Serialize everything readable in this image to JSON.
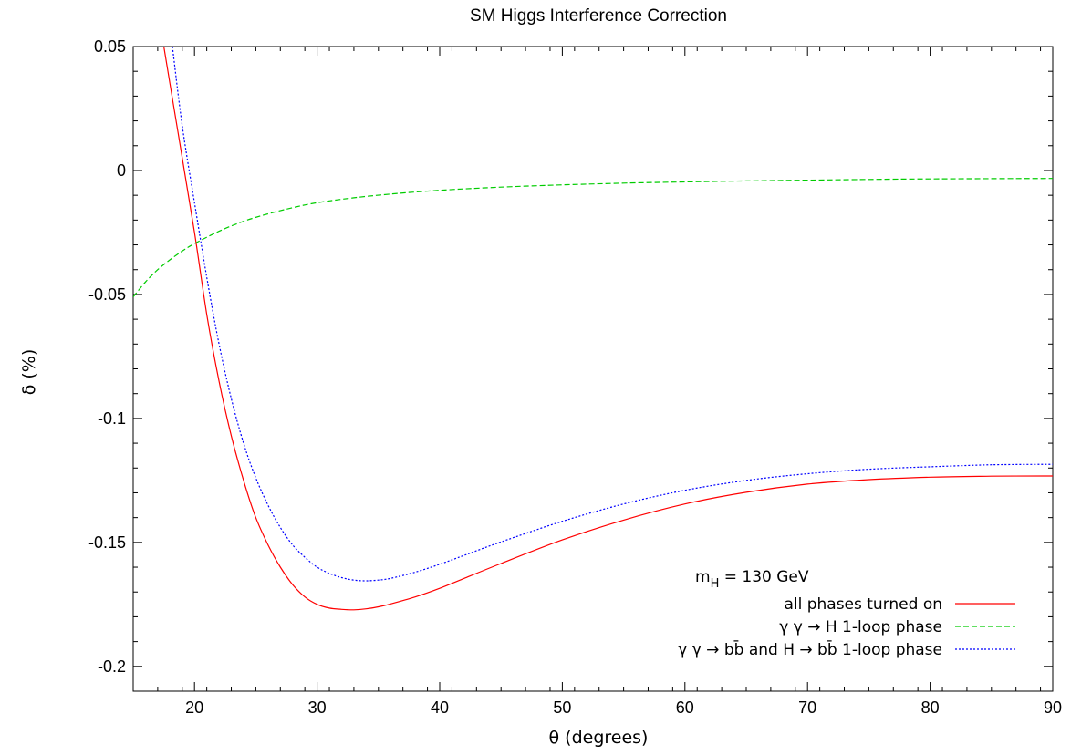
{
  "chart_data": {
    "type": "line",
    "title": "SM Higgs Interference Correction",
    "xlabel": "θ (degrees)",
    "ylabel": "δ (%)",
    "xlim": [
      15,
      90
    ],
    "ylim": [
      -0.21,
      0.05
    ],
    "x_ticks": [
      20,
      30,
      40,
      50,
      60,
      70,
      80,
      90
    ],
    "x_tick_labels": [
      "20",
      "30",
      "40",
      "50",
      "60",
      "70",
      "80",
      "90"
    ],
    "y_ticks": [
      0.05,
      0,
      -0.05,
      -0.1,
      -0.15,
      -0.2
    ],
    "y_tick_labels": [
      "0.05",
      "0",
      "-0.05",
      "-0.1",
      "-0.15",
      "-0.2"
    ],
    "grid": false,
    "legend_position": "bottom-right",
    "annotation": {
      "main": "m",
      "sub": "H",
      "rest": " = 130 GeV"
    },
    "series": [
      {
        "name": "all phases turned on",
        "color": "#ff0000",
        "dash": "solid",
        "x": [
          17.5,
          18,
          19,
          20,
          21,
          22,
          23,
          24,
          25,
          26,
          27,
          28,
          29,
          30,
          31,
          32,
          33,
          34,
          35,
          36,
          38,
          40,
          42,
          45,
          50,
          55,
          60,
          65,
          70,
          75,
          80,
          85,
          90
        ],
        "y": [
          0.05,
          0.035,
          0.005,
          -0.025,
          -0.058,
          -0.085,
          -0.107,
          -0.125,
          -0.14,
          -0.151,
          -0.16,
          -0.167,
          -0.172,
          -0.175,
          -0.1765,
          -0.177,
          -0.1772,
          -0.1768,
          -0.176,
          -0.1748,
          -0.172,
          -0.1685,
          -0.1645,
          -0.1585,
          -0.149,
          -0.141,
          -0.1345,
          -0.1298,
          -0.1265,
          -0.1247,
          -0.1237,
          -0.1233,
          -0.1232
        ]
      },
      {
        "name": "γ γ → H 1-loop phase",
        "color": "#00cc00",
        "dash": "dashed",
        "x": [
          15,
          16,
          17,
          18,
          19,
          20,
          22,
          24,
          26,
          28,
          30,
          33,
          36,
          40,
          45,
          50,
          55,
          60,
          65,
          70,
          75,
          80,
          85,
          90
        ],
        "y": [
          -0.051,
          -0.045,
          -0.04,
          -0.036,
          -0.0325,
          -0.0295,
          -0.0245,
          -0.0205,
          -0.0175,
          -0.015,
          -0.013,
          -0.011,
          -0.0095,
          -0.008,
          -0.0067,
          -0.0058,
          -0.0051,
          -0.0046,
          -0.0042,
          -0.0039,
          -0.0036,
          -0.0034,
          -0.0033,
          -0.0032
        ]
      },
      {
        "name": "γ γ → bb̄ and H → bb̄ 1-loop phase",
        "color": "#0000ff",
        "dash": "dotted",
        "x": [
          18.2,
          19,
          20,
          21,
          22,
          23,
          24,
          25,
          26,
          27,
          28,
          29,
          30,
          31,
          32,
          33,
          34,
          35,
          36,
          38,
          40,
          42,
          45,
          50,
          55,
          60,
          65,
          70,
          75,
          80,
          85,
          90
        ],
        "y": [
          0.05,
          0.018,
          -0.013,
          -0.043,
          -0.07,
          -0.092,
          -0.11,
          -0.124,
          -0.135,
          -0.144,
          -0.151,
          -0.156,
          -0.16,
          -0.1625,
          -0.1642,
          -0.1652,
          -0.1655,
          -0.1652,
          -0.1645,
          -0.162,
          -0.1588,
          -0.1552,
          -0.1498,
          -0.1415,
          -0.1345,
          -0.129,
          -0.125,
          -0.1223,
          -0.1205,
          -0.1195,
          -0.1187,
          -0.1185
        ]
      }
    ]
  }
}
